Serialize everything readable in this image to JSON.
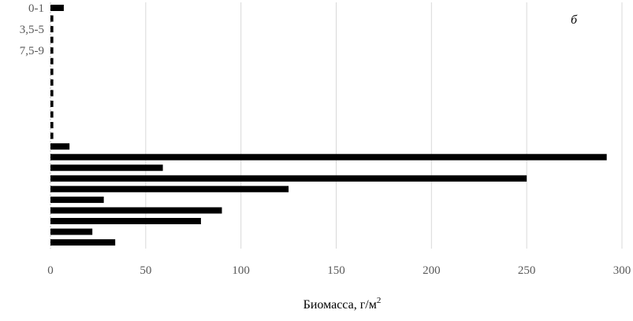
{
  "chart_data": {
    "type": "bar",
    "orientation": "horizontal",
    "categories": [
      "0-1",
      "",
      "3,5-5",
      "",
      "7,5-9",
      "",
      "",
      "",
      "",
      "",
      "",
      "",
      "",
      "",
      "",
      "",
      "",
      "",
      "",
      "",
      "",
      "",
      ""
    ],
    "values": [
      7,
      1.5,
      1.5,
      1.5,
      1.5,
      1.5,
      1.5,
      1.5,
      1.5,
      1.5,
      1.5,
      1.5,
      1.5,
      10,
      292,
      59,
      250,
      125,
      28,
      90,
      79,
      22,
      34
    ],
    "xlabel": "Биомасса, г/м",
    "xlabel_superscript": "2",
    "annotation": "б",
    "xlim": [
      0,
      300
    ],
    "xticks": [
      "0",
      "50",
      "100",
      "150",
      "200",
      "250",
      "300"
    ],
    "grid": true,
    "bar_color": "#000000",
    "grid_color": "#d9d9d9"
  }
}
